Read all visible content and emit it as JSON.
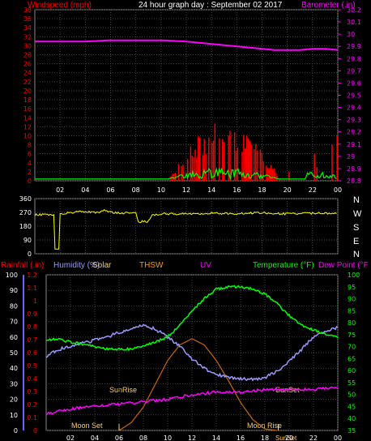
{
  "header": {
    "left_title": "Windspeed (mph)",
    "center_title": "24 hour graph day : September 02 2017",
    "right_title": "Barometer (.in)"
  },
  "dir_labels": [
    "N",
    "W",
    "S",
    "E",
    "N"
  ],
  "bottom_legend": {
    "rainfall": "Rainfall (.in)",
    "humidity": "Humidity (%)",
    "solar": "Solar",
    "thsw": "THSW",
    "uv": "UV",
    "temperature": "Temperature (°F)",
    "dewpoint": "Dew Point (°F"
  },
  "annotations": {
    "moonset": "Moon Set",
    "sunrise": "SunRise",
    "sunset": "SunSet",
    "moonrise": "Moon Rise",
    "sunset_bottom": "SunSet"
  },
  "colors": {
    "windspeed": "#ff0000",
    "wind_gust_line": "#00ff00",
    "barometer": "#ff00ff",
    "direction": "#ffff00",
    "rainfall": "#ff0000",
    "humidity": "#9999ff",
    "solar": "#ffcc66",
    "thsw": "#ff9900",
    "uv": "#ff00ff",
    "temperature": "#00ff00",
    "dewpoint": "#ff00ff",
    "solar_curve": "#cc6600",
    "grid": "#444444",
    "axis_text_left": "#ff0000",
    "axis_text_right": "#ff00ff",
    "axis_text_white": "#ffffff"
  },
  "chart_data": [
    {
      "type": "bar",
      "name": "wind-panel",
      "x_ticks": [
        "02",
        "04",
        "06",
        "08",
        "10",
        "12",
        "14",
        "16",
        "18",
        "20",
        "22",
        "00"
      ],
      "left_axis": {
        "label": "Windspeed (mph)",
        "ticks": [
          "0",
          "2",
          "4",
          "6",
          "8",
          "10",
          "12",
          "14",
          "16",
          "18",
          "20",
          "22",
          "24",
          "26",
          "28",
          "30",
          "32",
          "34",
          "36",
          "38"
        ],
        "ylim": [
          0,
          38
        ]
      },
      "right_axis": {
        "label": "Barometer (.in)",
        "ticks": [
          "28.8",
          "28.9",
          "29",
          "29.1",
          "29.2",
          "29.3",
          "29.4",
          "29.5",
          "29.6",
          "29.7",
          "29.8",
          "29.9",
          "30",
          "30.1",
          "30.2"
        ],
        "ylim": [
          28.8,
          30.2
        ]
      },
      "barometer": {
        "x_hours": [
          0,
          2,
          4,
          6,
          8,
          10,
          12,
          13,
          14,
          15,
          16,
          17,
          18,
          19,
          20,
          21,
          22,
          23,
          24
        ],
        "values": [
          29.94,
          29.94,
          29.94,
          29.95,
          29.95,
          29.95,
          29.94,
          29.93,
          29.92,
          29.91,
          29.9,
          29.89,
          29.88,
          29.87,
          29.87,
          29.87,
          29.88,
          29.88,
          29.87
        ]
      },
      "wind_bursts_hours": [
        10.5,
        19.5
      ],
      "wind_extra_hours": [
        20.1,
        22.1,
        22.3,
        23.5,
        23.9
      ],
      "wind_max": 13.5
    },
    {
      "type": "line",
      "name": "direction-panel",
      "left_axis": {
        "ticks": [
          "0",
          "90",
          "180",
          "270",
          "360"
        ],
        "ylim": [
          0,
          360
        ]
      },
      "series": [
        {
          "x_hours": [
            0,
            1.5,
            1.6,
            1.9,
            2.0,
            3.5,
            5,
            5.5,
            6,
            7,
            8,
            8.2,
            9,
            9.3,
            10,
            12,
            14,
            16,
            18,
            20,
            22,
            24
          ],
          "values": [
            255,
            255,
            30,
            30,
            260,
            275,
            270,
            285,
            270,
            265,
            265,
            210,
            210,
            250,
            260,
            260,
            265,
            262,
            268,
            260,
            265,
            262
          ]
        }
      ]
    },
    {
      "type": "line",
      "name": "climate-panel",
      "x_ticks": [
        "02",
        "04",
        "06",
        "08",
        "10",
        "12",
        "14",
        "16",
        "18",
        "20",
        "22",
        "00"
      ],
      "left_axis": {
        "label": "Rainfall (.in)",
        "ticks_outer": [
          "0",
          "10",
          "20",
          "30",
          "40",
          "50",
          "60",
          "70",
          "80",
          "90",
          "100"
        ],
        "ticks_inner": [
          "0",
          "0.1",
          "0.2",
          "0.3",
          "0.4",
          "0.5",
          "0.6",
          "0.7",
          "0.8",
          "0.9",
          "1",
          "1.1",
          "1.2"
        ]
      },
      "right_axis": {
        "label": "Temperature (°F)",
        "ticks": [
          "35",
          "40",
          "45",
          "50",
          "55",
          "60",
          "65",
          "70",
          "75",
          "80",
          "85",
          "90",
          "95",
          "100"
        ],
        "ylim": [
          35,
          100
        ]
      },
      "temperature": {
        "x_hours": [
          0,
          1,
          2,
          3,
          4,
          5,
          6,
          7,
          8,
          9,
          10,
          11,
          12,
          13,
          14,
          15,
          16,
          17,
          18,
          19,
          20,
          21,
          22,
          23,
          24
        ],
        "values": [
          73,
          73,
          72,
          71,
          70,
          69,
          69,
          69,
          70,
          72,
          74,
          79,
          85,
          90,
          94,
          95,
          95,
          94,
          92,
          88,
          83,
          79,
          77,
          75,
          74
        ]
      },
      "dewpoint": {
        "x_hours": [
          0,
          2,
          4,
          6,
          8,
          10,
          12,
          14,
          16,
          18,
          20,
          22,
          24
        ],
        "values": [
          42,
          44,
          45,
          46,
          47,
          48,
          50,
          51,
          51,
          52,
          52,
          52,
          53
        ]
      },
      "humidity": {
        "x_hours": [
          0,
          1,
          2,
          3,
          4,
          5,
          6,
          7,
          8,
          9,
          10,
          11,
          12,
          13,
          14,
          15,
          16,
          17,
          18,
          19,
          20,
          21,
          22,
          23,
          24
        ],
        "values": [
          48,
          52,
          54,
          56,
          58,
          60,
          63,
          65,
          68,
          65,
          60,
          54,
          46,
          40,
          36,
          34,
          33,
          33,
          34,
          38,
          44,
          52,
          60,
          64,
          66
        ]
      },
      "solar_curve": {
        "x_hours": [
          6,
          7,
          8,
          9,
          10,
          11,
          12,
          13,
          14,
          15,
          16,
          17,
          18,
          19
        ],
        "values": [
          0,
          5,
          15,
          30,
          45,
          55,
          59,
          55,
          45,
          32,
          18,
          7,
          1,
          0
        ]
      },
      "annotation_hours": {
        "moonset": 2.5,
        "sunrise": 7.5,
        "sunset": 19.6,
        "moonrise": 16.8
      }
    }
  ]
}
